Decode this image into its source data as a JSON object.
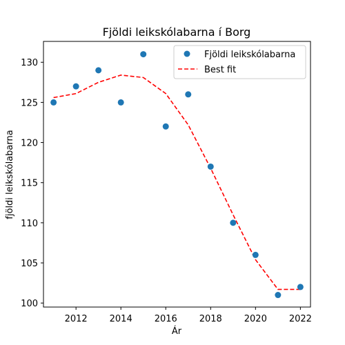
{
  "chart_data": {
    "type": "scatter",
    "title": "Fjöldi leikskólabarna í Borg",
    "xlabel": "Ár",
    "ylabel": "fjöldi leikskólabarna",
    "xlim": [
      2010.55,
      2022.45
    ],
    "ylim": [
      99.5,
      132.6
    ],
    "xticks": [
      2012,
      2014,
      2016,
      2018,
      2020,
      2022
    ],
    "yticks": [
      100,
      105,
      110,
      115,
      120,
      125,
      130
    ],
    "legend_position": "top-right",
    "grid": false,
    "series": [
      {
        "name": "Fjöldi leikskólabarna",
        "kind": "scatter",
        "color": "#1f77b4",
        "x": [
          2011,
          2012,
          2013,
          2014,
          2015,
          2016,
          2017,
          2018,
          2019,
          2020,
          2021,
          2022
        ],
        "y": [
          125,
          127,
          129,
          125,
          131,
          122,
          126,
          117,
          110,
          106,
          101,
          102
        ]
      },
      {
        "name": "Best fit",
        "kind": "line",
        "style": "dashed",
        "color": "#ff0000",
        "x": [
          2011,
          2012,
          2013,
          2014,
          2015,
          2016,
          2017,
          2018,
          2019,
          2020,
          2021,
          2022
        ],
        "y": [
          125.6,
          126.1,
          127.5,
          128.4,
          128.1,
          126.1,
          122.2,
          116.8,
          111.0,
          105.4,
          101.7,
          101.7
        ]
      }
    ]
  }
}
